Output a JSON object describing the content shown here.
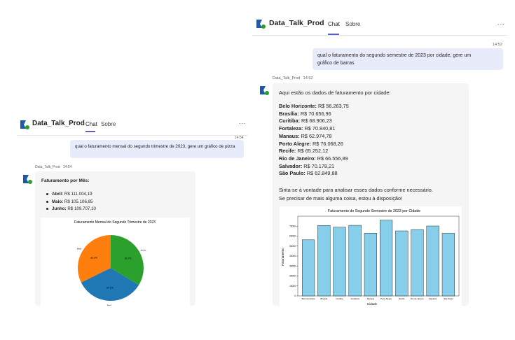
{
  "left_window": {
    "app_title": "Data_Talk_Prod",
    "tabs": [
      {
        "label": "Chat",
        "active": true
      },
      {
        "label": "Sobre",
        "active": false
      }
    ],
    "more_label": "...",
    "user_message": {
      "time": "14:54",
      "text": "qual o faturamento mensal do segundo trimestre de 2023, gere um gráfico de pizza"
    },
    "bot_message": {
      "sender": "Data_Talk_Prod",
      "time": "14:54",
      "heading": "Faturamento por Mês:",
      "items": [
        {
          "month": "Abril",
          "value": "R$ 111.004,19"
        },
        {
          "month": "Maio",
          "value": "R$ 105.106,85"
        },
        {
          "month": "Junho",
          "value": "R$ 109.707,10"
        }
      ]
    },
    "chart_data": {
      "type": "pie",
      "title": "Faturamento Mensal do Segundo Trimestre de 2023",
      "categories": [
        "Abril",
        "Maio",
        "Junho"
      ],
      "values": [
        111004.19,
        105106.85,
        109707.1
      ],
      "percent_labels": [
        "34.1%",
        "32.3%",
        "33.7%"
      ],
      "outer_labels": [
        "Abril",
        "Maio",
        "Junho"
      ],
      "colors": [
        "#1f77b4",
        "#ff7f0e",
        "#2ca02c"
      ]
    }
  },
  "right_window": {
    "app_title": "Data_Talk_Prod",
    "tabs": [
      {
        "label": "Chat",
        "active": true
      },
      {
        "label": "Sobre",
        "active": false
      }
    ],
    "more_label": "...",
    "user_message": {
      "time": "14:52",
      "text_line1": "qual o faturamento do segundo semestre de 2023 por cidade, gere um",
      "text_line2": "gráfico de barras"
    },
    "bot_message": {
      "sender": "Data_Talk_Prod",
      "time": "14:52",
      "intro": "Aqui estão os dados de faturamento por cidade:",
      "cities": [
        {
          "name": "Belo Horizonte",
          "value": "R$ 56.263,75"
        },
        {
          "name": "Brasília",
          "value": "R$ 70.656,96"
        },
        {
          "name": "Curitiba",
          "value": "R$ 68.906,23"
        },
        {
          "name": "Fortaleza",
          "value": "R$ 70.840,81"
        },
        {
          "name": "Manaus",
          "value": "R$ 62.974,78"
        },
        {
          "name": "Porto Alegre",
          "value": "R$ 76.068,26"
        },
        {
          "name": "Recife",
          "value": "R$ 65.252,12"
        },
        {
          "name": "Rio de Janeiro",
          "value": "R$ 66.556,89"
        },
        {
          "name": "Salvador",
          "value": "R$ 70.178,21"
        },
        {
          "name": "São Paulo",
          "value": "R$ 62.849,88"
        }
      ],
      "closing_line1": "Sinta-se à vontade para analisar esses dados conforme necessário.",
      "closing_line2": "Se precisar de mais alguma coisa, estou à disposição!"
    },
    "chart_data": {
      "type": "bar",
      "title": "Faturamento do Segundo Semestre de 2023 por Cidade",
      "xlabel": "Cidade",
      "ylabel": "Faturamento",
      "categories": [
        "Belo Horizonte",
        "Brasília",
        "Curitiba",
        "Fortaleza",
        "Manaus",
        "Porto Alegre",
        "Recife",
        "Rio de Janeiro",
        "Salvador",
        "São Paulo"
      ],
      "values": [
        56263.75,
        70656.96,
        68906.23,
        70840.81,
        62974.78,
        76068.26,
        65252.12,
        66556.89,
        70178.21,
        62849.88
      ],
      "ylim": [
        0,
        80000
      ],
      "yticks": [
        0,
        10000,
        20000,
        30000,
        40000,
        50000,
        60000,
        70000
      ],
      "bar_color": "#87ceeb",
      "edge_color": "#000000",
      "grid": false
    }
  }
}
